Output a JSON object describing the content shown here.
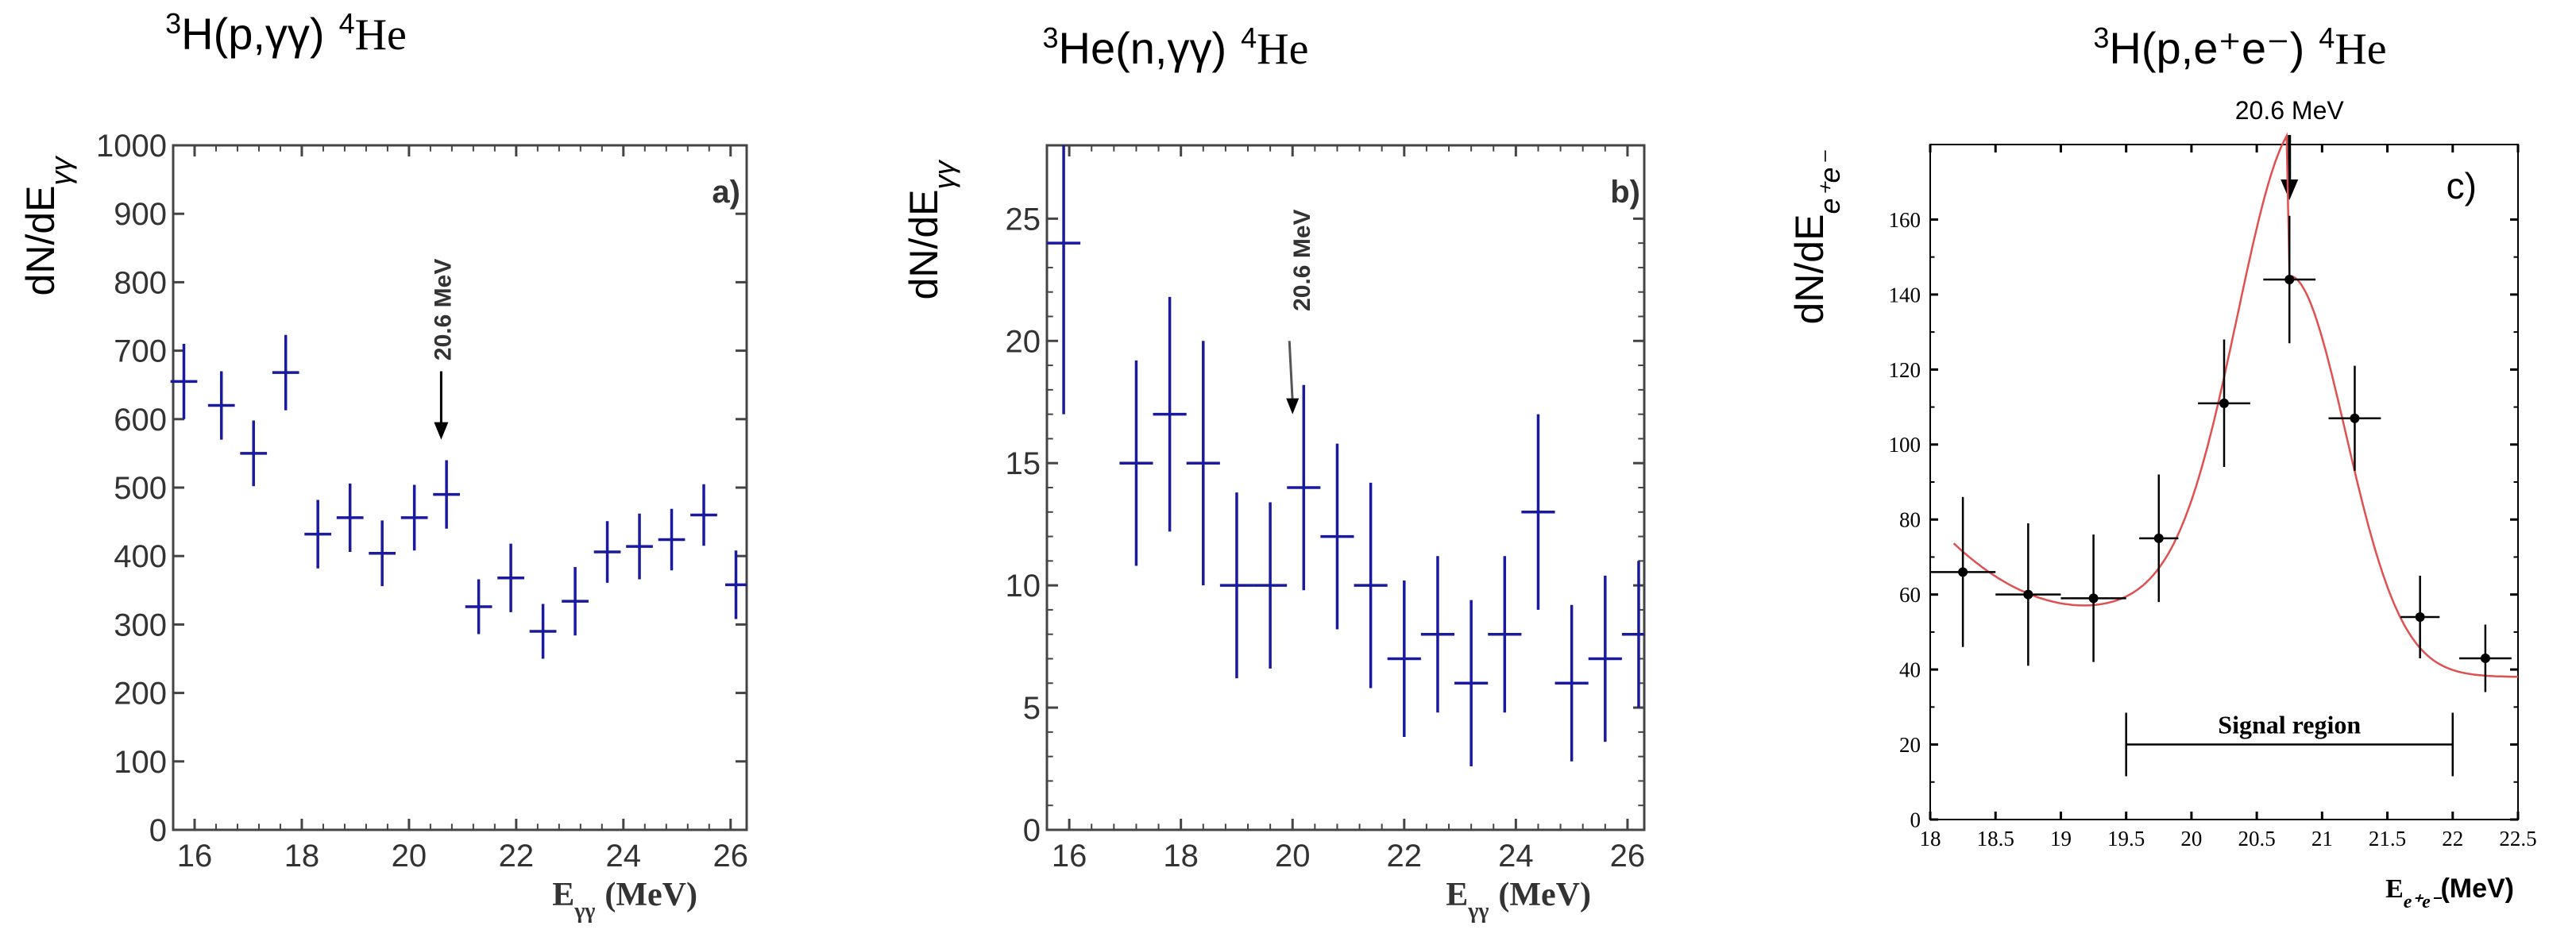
{
  "chart_data": [
    {
      "type": "scatter",
      "panel": "a)",
      "title_super": "3",
      "title_main": "H(p,γγ)",
      "title_product_super": "4",
      "title_product": "He",
      "ylabel_main": "dN/dE",
      "ylabel_sub": "γγ",
      "xlabel_main": "E",
      "xlabel_sub": "γγ",
      "xlabel_unit": "(MeV)",
      "xlim": [
        15.6,
        26.3
      ],
      "ylim": [
        0,
        1000
      ],
      "xticks": [
        16,
        18,
        20,
        22,
        24,
        26
      ],
      "yticks": [
        0,
        100,
        200,
        300,
        400,
        500,
        600,
        700,
        800,
        900,
        1000
      ],
      "annotation": "20.6 MeV",
      "annotation_x": 20.6,
      "annotation_arrow_y": [
        670,
        570
      ],
      "color": "#1a1a9e",
      "points": [
        {
          "x": 15.8,
          "y": 655,
          "xerr": 0.25,
          "yerr": 55
        },
        {
          "x": 16.5,
          "y": 620,
          "xerr": 0.25,
          "yerr": 50
        },
        {
          "x": 17.1,
          "y": 550,
          "xerr": 0.25,
          "yerr": 48
        },
        {
          "x": 17.7,
          "y": 668,
          "xerr": 0.25,
          "yerr": 55
        },
        {
          "x": 18.3,
          "y": 432,
          "xerr": 0.25,
          "yerr": 50
        },
        {
          "x": 18.9,
          "y": 456,
          "xerr": 0.25,
          "yerr": 50
        },
        {
          "x": 19.5,
          "y": 404,
          "xerr": 0.25,
          "yerr": 48
        },
        {
          "x": 20.1,
          "y": 456,
          "xerr": 0.25,
          "yerr": 48
        },
        {
          "x": 20.7,
          "y": 490,
          "xerr": 0.25,
          "yerr": 50
        },
        {
          "x": 21.3,
          "y": 326,
          "xerr": 0.25,
          "yerr": 40
        },
        {
          "x": 21.9,
          "y": 368,
          "xerr": 0.25,
          "yerr": 50
        },
        {
          "x": 22.5,
          "y": 290,
          "xerr": 0.25,
          "yerr": 40
        },
        {
          "x": 23.1,
          "y": 334,
          "xerr": 0.25,
          "yerr": 50
        },
        {
          "x": 23.7,
          "y": 406,
          "xerr": 0.25,
          "yerr": 45
        },
        {
          "x": 24.3,
          "y": 414,
          "xerr": 0.25,
          "yerr": 48
        },
        {
          "x": 24.9,
          "y": 424,
          "xerr": 0.25,
          "yerr": 45
        },
        {
          "x": 25.5,
          "y": 460,
          "xerr": 0.25,
          "yerr": 45
        },
        {
          "x": 26.1,
          "y": 358,
          "xerr": 0.2,
          "yerr": 50
        }
      ]
    },
    {
      "type": "scatter",
      "panel": "b)",
      "title_super": "3",
      "title_main": "He(n,γγ)",
      "title_product_super": "4",
      "title_product": "He",
      "ylabel_main": "dN/dE",
      "ylabel_sub": "γγ",
      "xlabel_main": "E",
      "xlabel_sub": "γγ",
      "xlabel_unit": "(MeV)",
      "xlim": [
        15.6,
        26.3
      ],
      "ylim": [
        0,
        28
      ],
      "xticks": [
        16,
        18,
        20,
        22,
        24,
        26
      ],
      "yticks": [
        0,
        5,
        10,
        15,
        20,
        25
      ],
      "annotation": "20.6 MeV",
      "annotation_x": 20.0,
      "annotation_arrow_y": [
        20,
        17
      ],
      "color": "#1a1a9e",
      "points": [
        {
          "x": 15.9,
          "y": 24,
          "xerr": 0.3,
          "yerr": 7
        },
        {
          "x": 17.2,
          "y": 15,
          "xerr": 0.3,
          "yerr": 4.2
        },
        {
          "x": 17.8,
          "y": 17,
          "xerr": 0.3,
          "yerr": 4.8
        },
        {
          "x": 18.4,
          "y": 15,
          "xerr": 0.3,
          "yerr": 5
        },
        {
          "x": 19.0,
          "y": 10,
          "xerr": 0.3,
          "yerr": 3.8
        },
        {
          "x": 19.6,
          "y": 10,
          "xerr": 0.3,
          "yerr": 3.4
        },
        {
          "x": 20.2,
          "y": 14,
          "xerr": 0.3,
          "yerr": 4.2
        },
        {
          "x": 20.8,
          "y": 12,
          "xerr": 0.3,
          "yerr": 3.8
        },
        {
          "x": 21.4,
          "y": 10,
          "xerr": 0.3,
          "yerr": 4.2
        },
        {
          "x": 22.0,
          "y": 7,
          "xerr": 0.3,
          "yerr": 3.2
        },
        {
          "x": 22.6,
          "y": 8,
          "xerr": 0.3,
          "yerr": 3.2
        },
        {
          "x": 23.2,
          "y": 6,
          "xerr": 0.3,
          "yerr": 3.4
        },
        {
          "x": 23.8,
          "y": 8,
          "xerr": 0.3,
          "yerr": 3.2
        },
        {
          "x": 24.4,
          "y": 13,
          "xerr": 0.3,
          "yerr": 4
        },
        {
          "x": 25.0,
          "y": 6,
          "xerr": 0.3,
          "yerr": 3.2
        },
        {
          "x": 25.6,
          "y": 7,
          "xerr": 0.3,
          "yerr": 3.4
        },
        {
          "x": 26.2,
          "y": 8,
          "xerr": 0.3,
          "yerr": 3
        }
      ]
    },
    {
      "type": "scatter",
      "panel": "c)",
      "title_super": "3",
      "title_main": "H(p,e⁺e⁻)",
      "title_product_super": "4",
      "title_product": "He",
      "ylabel_main": "dN/dE",
      "ylabel_sub": "e⁺e⁻",
      "xlabel_main": "E",
      "xlabel_sub": "e⁺e⁻",
      "xlabel_unit": "(MeV)",
      "xlim": [
        18,
        22.5
      ],
      "ylim": [
        0,
        180
      ],
      "xticks": [
        "18",
        "18.5",
        "19",
        "19.5",
        "20",
        "20.5",
        "21",
        "21.5",
        "22",
        "22.5"
      ],
      "yticks": [
        0,
        20,
        40,
        60,
        80,
        100,
        120,
        140,
        160
      ],
      "annotation": "20.6 MeV",
      "annotation_x": 20.75,
      "signal_region_label": "Signal region",
      "signal_region": [
        19.5,
        22.0
      ],
      "signal_region_y": 20,
      "color": "#000000",
      "curve_color": "#e05050",
      "curve": {
        "a": 57,
        "b": 2,
        "c": 16.0,
        "x0": 19.2,
        "amp": 88,
        "mu": 20.75,
        "sigma": 0.42
      },
      "points": [
        {
          "x": 18.25,
          "y": 66,
          "xerr": 0.25,
          "yerr": 20
        },
        {
          "x": 18.75,
          "y": 60,
          "xerr": 0.25,
          "yerr": 19
        },
        {
          "x": 19.25,
          "y": 59,
          "xerr": 0.25,
          "yerr": 17
        },
        {
          "x": 19.75,
          "y": 75,
          "xerr": 0.15,
          "yerr": 17
        },
        {
          "x": 20.25,
          "y": 111,
          "xerr": 0.2,
          "yerr": 17
        },
        {
          "x": 20.75,
          "y": 144,
          "xerr": 0.2,
          "yerr": 17
        },
        {
          "x": 21.25,
          "y": 107,
          "xerr": 0.2,
          "yerr": 14
        },
        {
          "x": 21.75,
          "y": 54,
          "xerr": 0.15,
          "yerr": 11
        },
        {
          "x": 22.25,
          "y": 43,
          "xerr": 0.2,
          "yerr": 9
        }
      ]
    }
  ]
}
